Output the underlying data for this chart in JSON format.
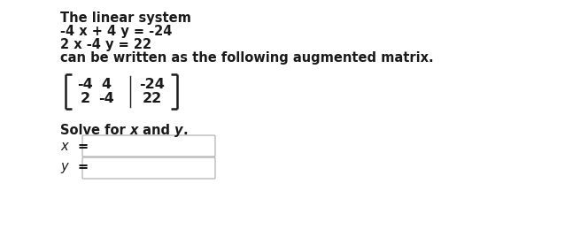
{
  "bg_color": "#ffffff",
  "text_color": "#1a1a1a",
  "line1": "The linear system",
  "line2": "-4 x + 4 y = -24",
  "line3": "2 x -4 y = 22",
  "line4": "can be written as the following augmented matrix.",
  "matrix_row1": [
    "-4",
    "4",
    "-24"
  ],
  "matrix_row2": [
    "2",
    "-4",
    "22"
  ],
  "solve_label_parts": [
    "Solve for ",
    "x",
    " and ",
    "y",
    "."
  ],
  "x_label": "x =",
  "y_label": "y =",
  "font_size_text": 10.5,
  "font_size_matrix": 11.5,
  "bracket_color": "#1a1a1a",
  "box_edge_color": "#aaaaaa",
  "box_face_color": "#ffffff"
}
